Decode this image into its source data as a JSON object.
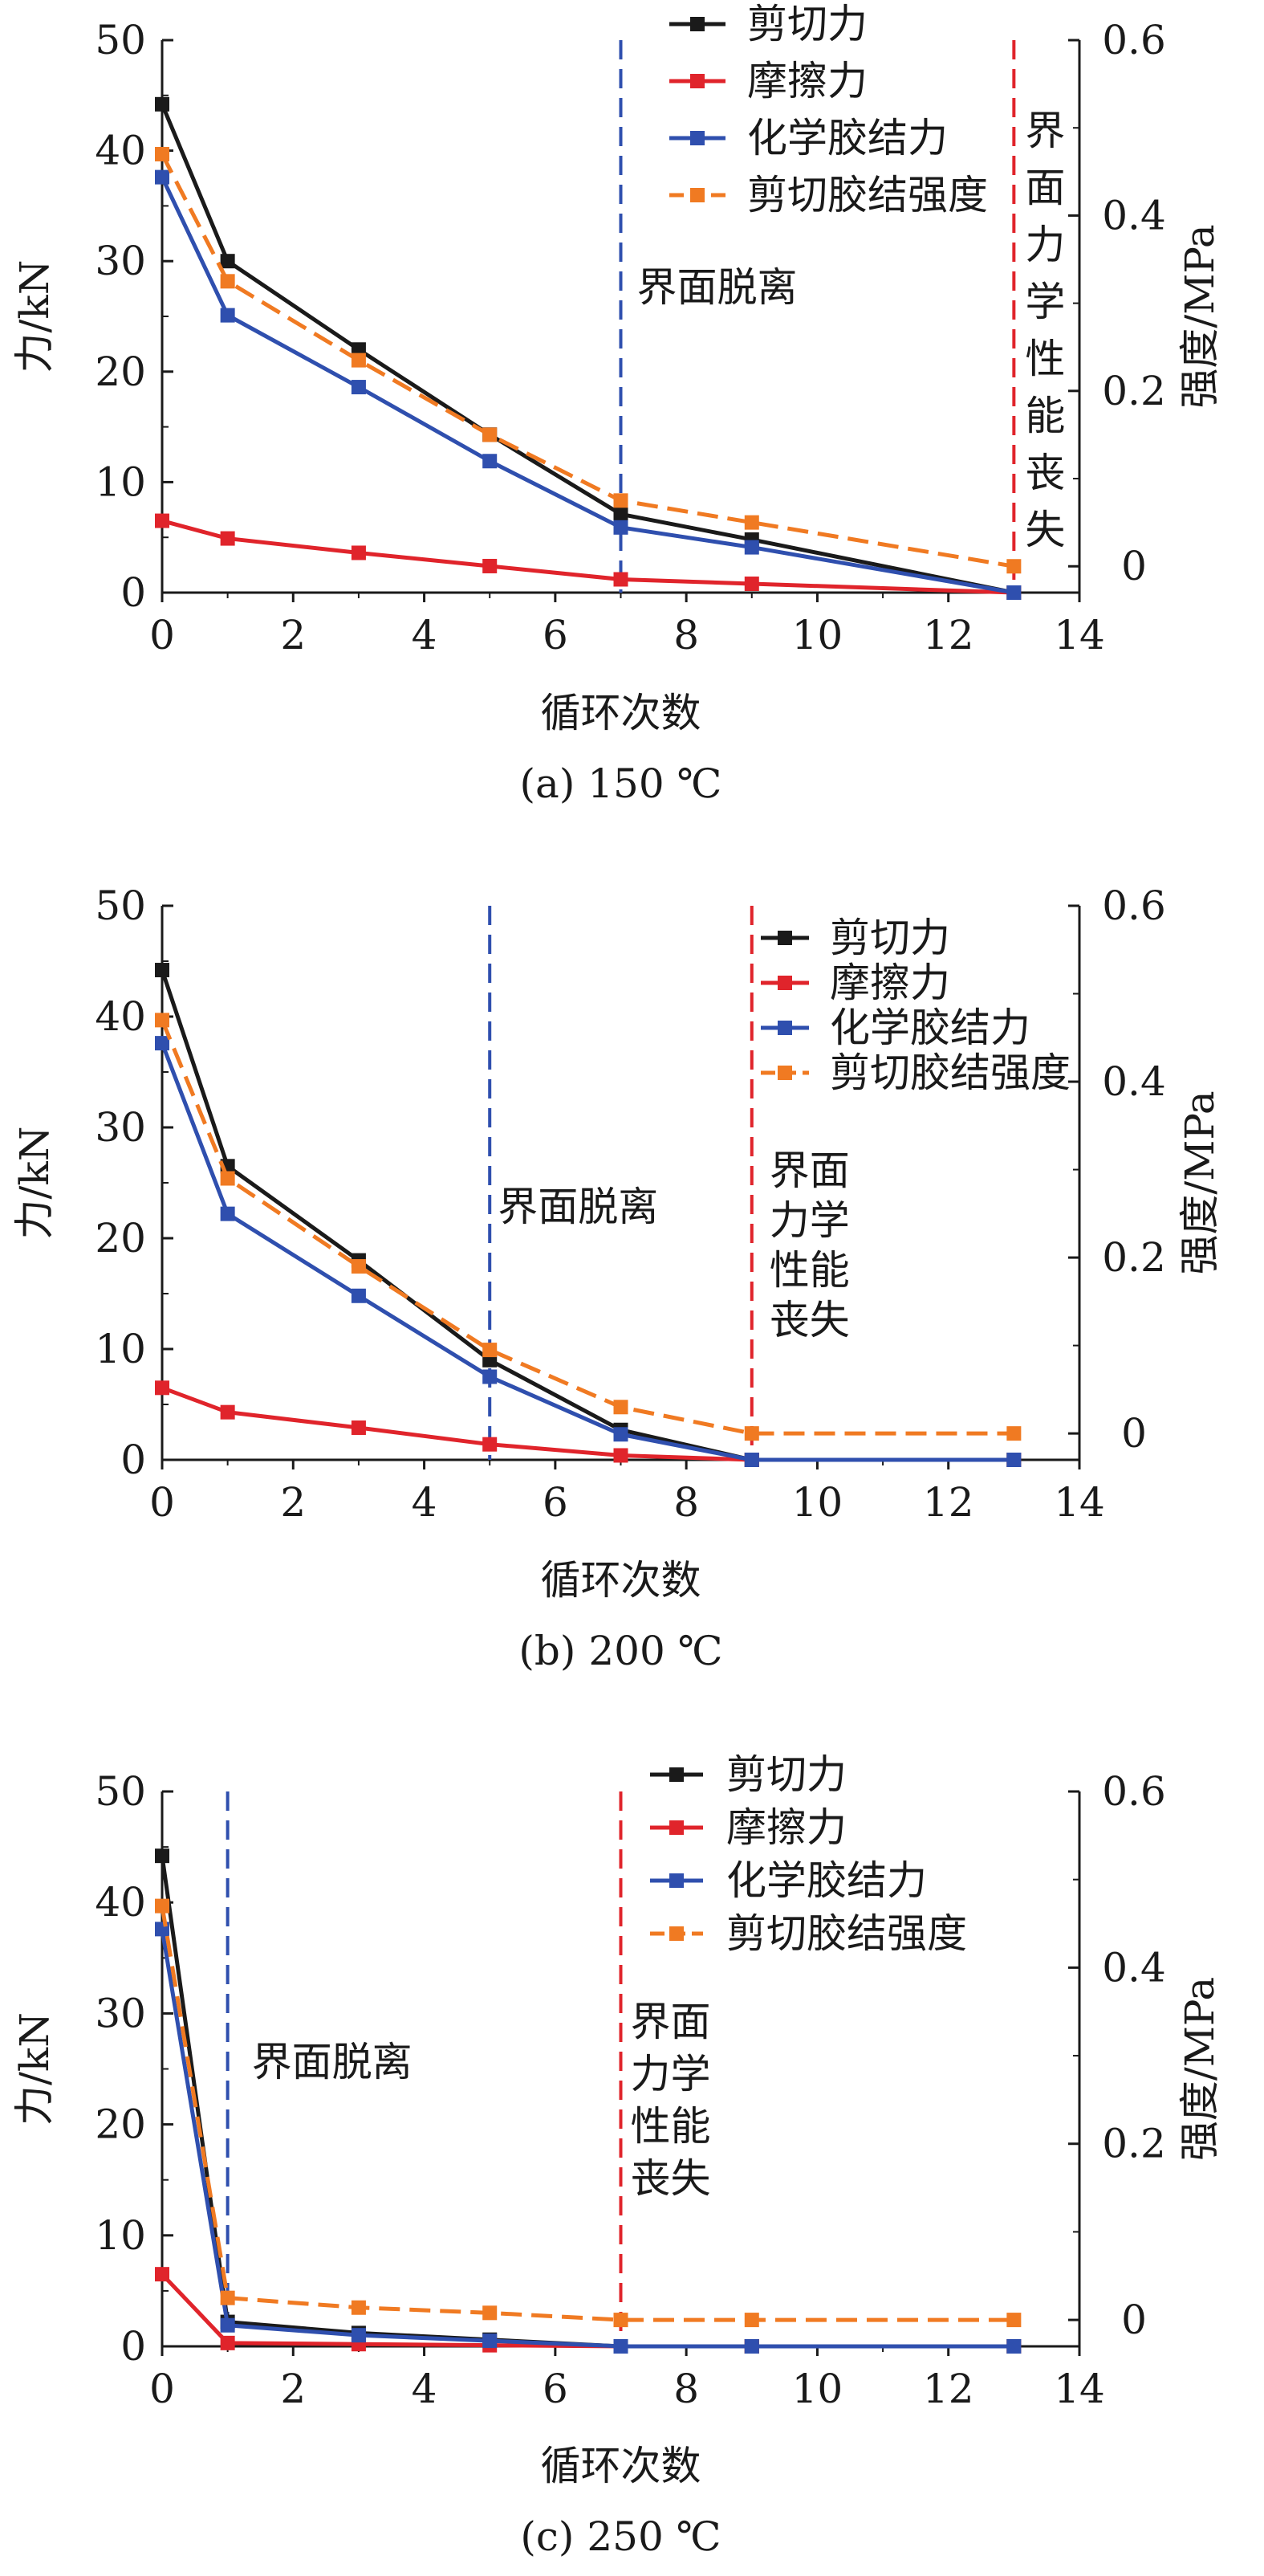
{
  "chart_data": [
    {
      "type": "line",
      "caption": "(a) 150 ℃",
      "xlabel": "循环次数",
      "ylabel": "力/kN",
      "y2label": "强度/MPa",
      "xlim": [
        0,
        14
      ],
      "ylim": [
        0,
        50
      ],
      "y2lim": [
        -0.03,
        0.6
      ],
      "xticks": [
        "0",
        "2",
        "4",
        "6",
        "8",
        "10",
        "12",
        "14"
      ],
      "yticks": [
        "0",
        "10",
        "20",
        "30",
        "40",
        "50"
      ],
      "y2ticks": [
        "0",
        "0.2",
        "0.4",
        "0.6"
      ],
      "legend_position": "top-right",
      "series": [
        {
          "name": "剪切力",
          "color": "#1a1a1a",
          "dash": "solid",
          "axis": "left",
          "x": [
            0,
            1,
            3,
            5,
            7,
            9,
            13
          ],
          "y": [
            44.2,
            30,
            22,
            14.3,
            7.1,
            4.8,
            0
          ]
        },
        {
          "name": "摩擦力",
          "color": "#e0242b",
          "dash": "solid",
          "axis": "left",
          "x": [
            0,
            1,
            3,
            5,
            7,
            9,
            13
          ],
          "y": [
            6.5,
            4.9,
            3.6,
            2.4,
            1.2,
            0.8,
            0
          ]
        },
        {
          "name": "化学胶结力",
          "color": "#2f4fae",
          "dash": "solid",
          "axis": "left",
          "x": [
            0,
            1,
            3,
            5,
            7,
            9,
            13
          ],
          "y": [
            37.6,
            25.1,
            18.6,
            11.9,
            5.9,
            4.1,
            0
          ]
        },
        {
          "name": "剪切胶结强度",
          "color": "#f07a22",
          "dash": "dashed",
          "axis": "right",
          "x": [
            0,
            1,
            3,
            5,
            7,
            9,
            13
          ],
          "y": [
            0.47,
            0.325,
            0.235,
            0.15,
            0.075,
            0.05,
            0
          ]
        }
      ],
      "vlines": [
        {
          "x": 7,
          "color": "#2f4fae",
          "label": "界面脱离"
        },
        {
          "x": 13,
          "color": "#e0242b",
          "label": "界面力学性能丧失"
        }
      ]
    },
    {
      "type": "line",
      "caption": "(b) 200 ℃",
      "xlabel": "循环次数",
      "ylabel": "力/kN",
      "y2label": "强度/MPa",
      "xlim": [
        0,
        14
      ],
      "ylim": [
        0,
        50
      ],
      "y2lim": [
        -0.03,
        0.6
      ],
      "xticks": [
        "0",
        "2",
        "4",
        "6",
        "8",
        "10",
        "12",
        "14"
      ],
      "yticks": [
        "0",
        "10",
        "20",
        "30",
        "40",
        "50"
      ],
      "y2ticks": [
        "0",
        "0.2",
        "0.4",
        "0.6"
      ],
      "legend_position": "top-right",
      "series": [
        {
          "name": "剪切力",
          "color": "#1a1a1a",
          "dash": "solid",
          "axis": "left",
          "x": [
            0,
            1,
            3,
            5,
            7,
            9,
            13
          ],
          "y": [
            44.2,
            26.5,
            18,
            9,
            2.7,
            0,
            0
          ]
        },
        {
          "name": "摩擦力",
          "color": "#e0242b",
          "dash": "solid",
          "axis": "left",
          "x": [
            0,
            1,
            3,
            5,
            7,
            9,
            13
          ],
          "y": [
            6.5,
            4.3,
            2.9,
            1.4,
            0.4,
            0,
            0
          ]
        },
        {
          "name": "化学胶结力",
          "color": "#2f4fae",
          "dash": "solid",
          "axis": "left",
          "x": [
            0,
            1,
            3,
            5,
            7,
            9,
            13
          ],
          "y": [
            37.6,
            22.2,
            14.8,
            7.5,
            2.3,
            0,
            0
          ]
        },
        {
          "name": "剪切胶结强度",
          "color": "#f07a22",
          "dash": "dashed",
          "axis": "right",
          "x": [
            0,
            1,
            3,
            5,
            7,
            9,
            13
          ],
          "y": [
            0.47,
            0.29,
            0.19,
            0.095,
            0.03,
            0,
            0
          ]
        }
      ],
      "vlines": [
        {
          "x": 5,
          "color": "#2f4fae",
          "label": "界面脱离"
        },
        {
          "x": 9,
          "color": "#e0242b",
          "label": "界面力学性能丧失"
        }
      ]
    },
    {
      "type": "line",
      "caption": "(c) 250 ℃",
      "xlabel": "循环次数",
      "ylabel": "力/kN",
      "y2label": "强度/MPa",
      "xlim": [
        0,
        14
      ],
      "ylim": [
        0,
        50
      ],
      "y2lim": [
        -0.03,
        0.6
      ],
      "xticks": [
        "0",
        "2",
        "4",
        "6",
        "8",
        "10",
        "12",
        "14"
      ],
      "yticks": [
        "0",
        "10",
        "20",
        "30",
        "40",
        "50"
      ],
      "y2ticks": [
        "0",
        "0.2",
        "0.4",
        "0.6"
      ],
      "legend_position": "top-right",
      "series": [
        {
          "name": "剪切力",
          "color": "#1a1a1a",
          "dash": "solid",
          "axis": "left",
          "x": [
            0,
            1,
            3,
            5,
            7,
            9,
            13
          ],
          "y": [
            44.2,
            2.2,
            1.2,
            0.6,
            0,
            0,
            0
          ]
        },
        {
          "name": "摩擦力",
          "color": "#e0242b",
          "dash": "solid",
          "axis": "left",
          "x": [
            0,
            1,
            3,
            5,
            7,
            9,
            13
          ],
          "y": [
            6.5,
            0.3,
            0.2,
            0.1,
            0,
            0,
            0
          ]
        },
        {
          "name": "化学胶结力",
          "color": "#2f4fae",
          "dash": "solid",
          "axis": "left",
          "x": [
            0,
            1,
            3,
            5,
            7,
            9,
            13
          ],
          "y": [
            37.6,
            1.9,
            1,
            0.5,
            0,
            0,
            0
          ]
        },
        {
          "name": "剪切胶结强度",
          "color": "#f07a22",
          "dash": "dashed",
          "axis": "right",
          "x": [
            0,
            1,
            3,
            5,
            7,
            9,
            13
          ],
          "y": [
            0.47,
            0.025,
            0.014,
            0.008,
            0,
            0,
            0
          ]
        }
      ],
      "vlines": [
        {
          "x": 1,
          "color": "#2f4fae",
          "label": "界面脱离"
        },
        {
          "x": 7,
          "color": "#e0242b",
          "label": "界面力学性能丧失"
        }
      ]
    }
  ]
}
